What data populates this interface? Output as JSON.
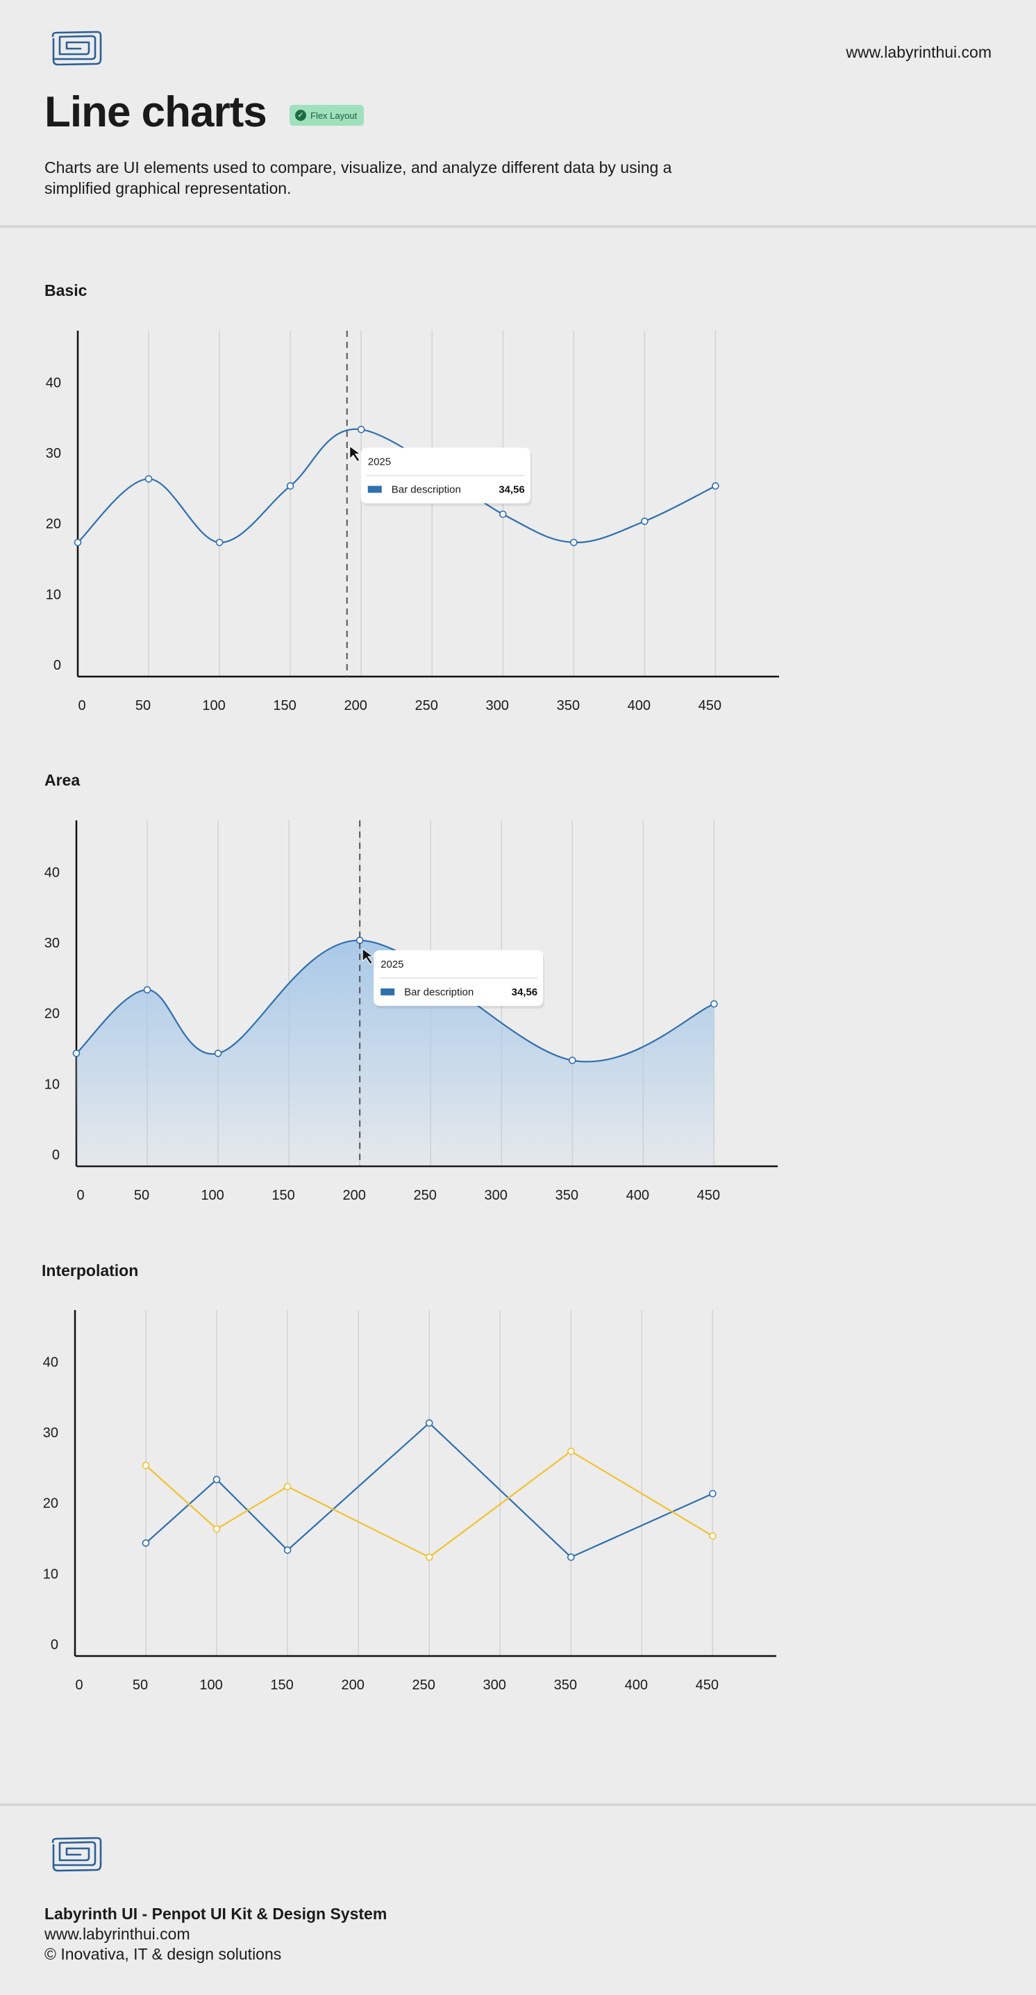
{
  "header": {
    "site_url": "www.labyrinthui.com",
    "title": "Line charts",
    "badge": "Flex Layout",
    "description": "Charts are UI elements used to compare, visualize, and analyze different data by using a simplified graphical representation.",
    "logo_icon": "labyrinth-logo-icon"
  },
  "sections": {
    "basic": "Basic",
    "area": "Area",
    "interpolation": "Interpolation"
  },
  "tooltip": {
    "year": "2025",
    "label": "Bar description",
    "value": "34,56"
  },
  "colors": {
    "blue": "#2f6fad",
    "blue_fill": "#a9c9e8",
    "yellow": "#f2c12e",
    "axis": "#111111",
    "grid": "#d2d2d2"
  },
  "chart_data": [
    {
      "type": "line",
      "title": "Basic",
      "x": [
        0,
        50,
        100,
        150,
        200,
        300,
        350,
        400,
        450
      ],
      "series": [
        {
          "values": [
            19,
            28,
            19,
            27,
            35,
            23,
            19,
            22,
            27
          ]
        }
      ],
      "xticks": [
        0,
        50,
        100,
        150,
        200,
        250,
        300,
        350,
        400,
        450
      ],
      "yticks": [
        0,
        10,
        20,
        30,
        40
      ],
      "xlim": [
        0,
        490
      ],
      "ylim": [
        0,
        49
      ],
      "grid": "vertical",
      "tooltip_x": 190
    },
    {
      "type": "area",
      "title": "Area",
      "x": [
        0,
        50,
        100,
        200,
        350,
        450
      ],
      "series": [
        {
          "values": [
            16,
            25,
            16,
            32,
            15,
            23
          ]
        }
      ],
      "xticks": [
        0,
        50,
        100,
        150,
        200,
        250,
        300,
        350,
        400,
        450
      ],
      "yticks": [
        0,
        10,
        20,
        30,
        40
      ],
      "xlim": [
        0,
        490
      ],
      "ylim": [
        0,
        49
      ],
      "grid": "vertical",
      "tooltip_x": 200
    },
    {
      "type": "line",
      "title": "Interpolation",
      "x": [
        50,
        100,
        150,
        250,
        350,
        450
      ],
      "series": [
        {
          "values": [
            16,
            25,
            15,
            33,
            14,
            23
          ],
          "color": "blue"
        },
        {
          "values": [
            27,
            18,
            24,
            14,
            29,
            17
          ],
          "color": "yellow"
        }
      ],
      "xticks": [
        0,
        50,
        100,
        150,
        200,
        250,
        300,
        350,
        400,
        450
      ],
      "yticks": [
        0,
        10,
        20,
        30,
        40
      ],
      "xlim": [
        0,
        490
      ],
      "ylim": [
        0,
        49
      ],
      "grid": "vertical"
    }
  ],
  "footer": {
    "title": "Labyrinth UI  - Penpot UI Kit & Design System",
    "url": "www.labyrinthui.com",
    "copyright": "© Inovativa, IT & design solutions",
    "logo_icon": "labyrinth-logo-icon"
  }
}
